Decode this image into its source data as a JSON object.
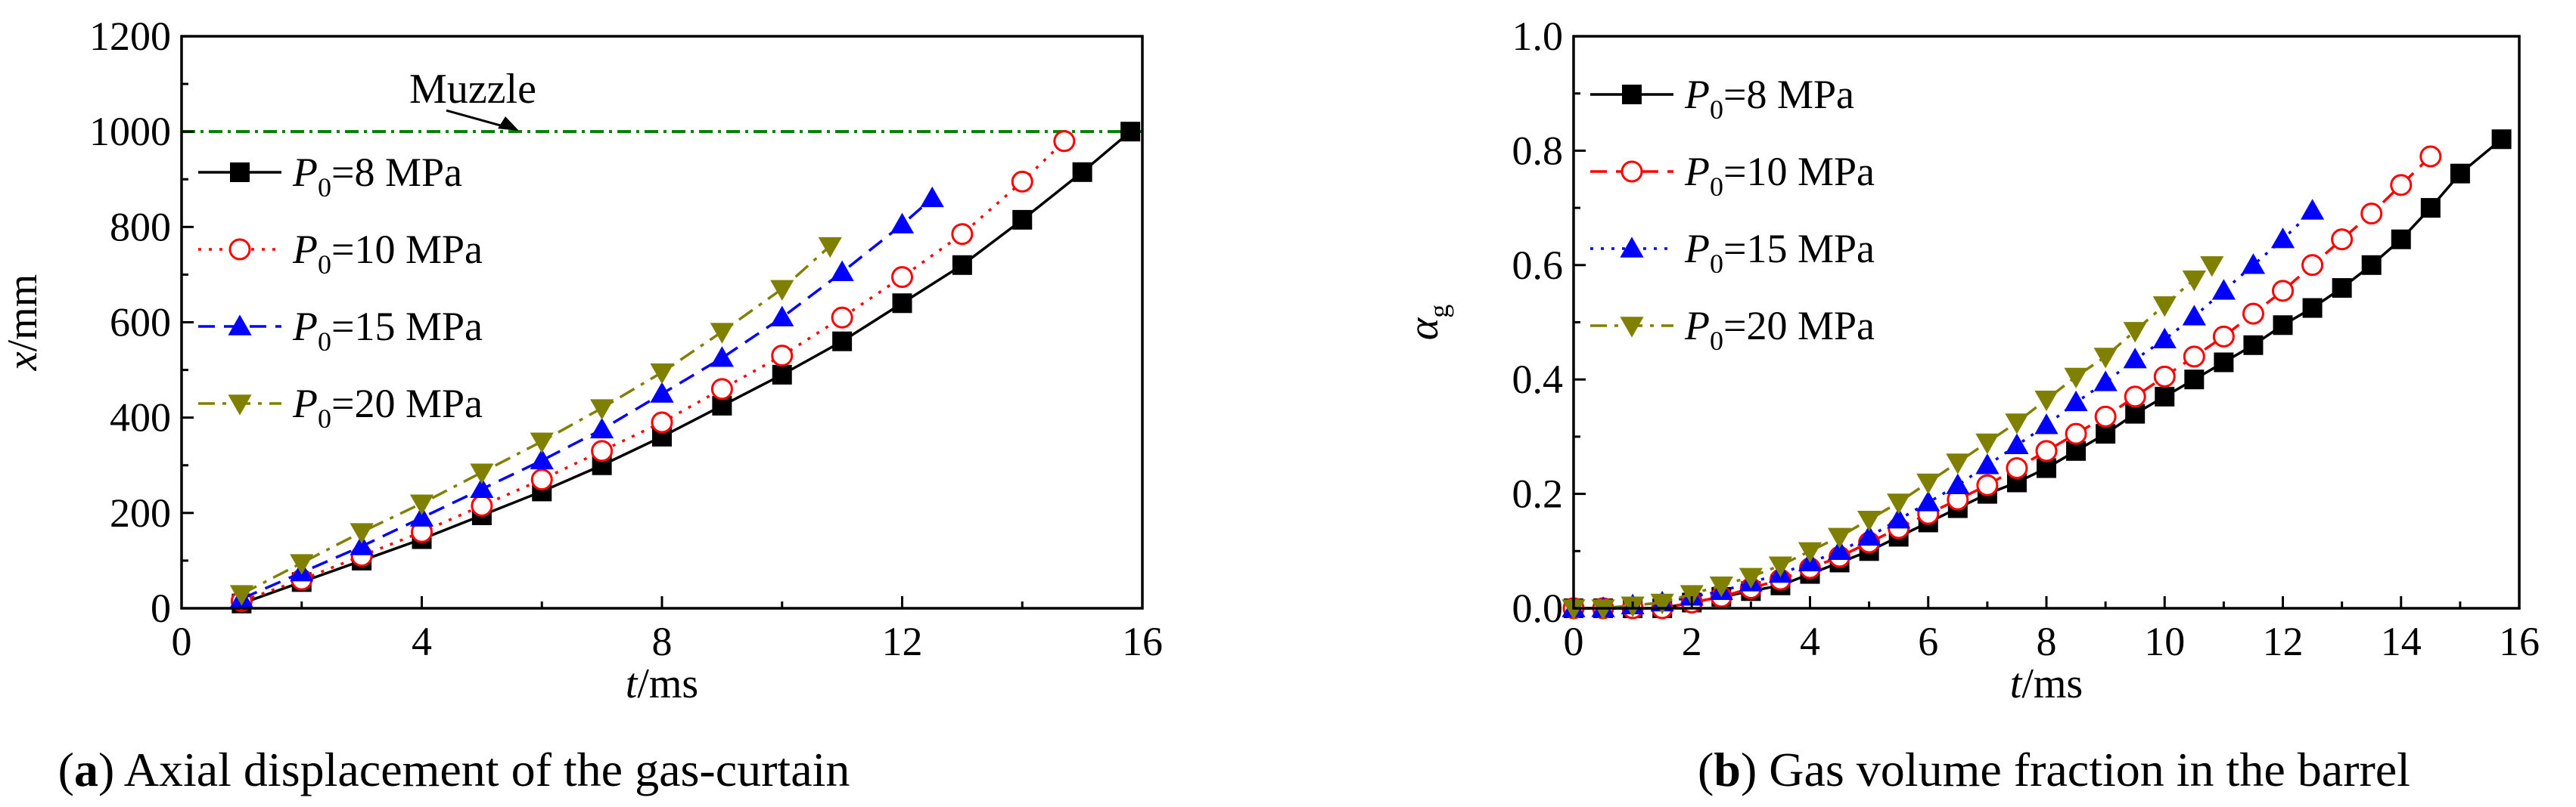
{
  "colors": {
    "black": "#000000",
    "red": "#ff0000",
    "blue": "#0000ff",
    "olive": "#808000",
    "muzzle": "#008000"
  },
  "chart_data": [
    {
      "type": "line",
      "panel": "a",
      "caption_letter": "a",
      "caption_text": "Axial displacement of the gas-curtain",
      "xlabel_italic": "t",
      "xlabel_rest": "/ms",
      "ylabel_italic": "x",
      "ylabel_rest": "/mm",
      "xlim": [
        0,
        16
      ],
      "ylim": [
        0,
        1200
      ],
      "xticks": [
        0,
        4,
        8,
        12,
        16
      ],
      "yticks": [
        0,
        200,
        400,
        600,
        800,
        1000,
        1200
      ],
      "legend_position": "left",
      "reference_line": {
        "y": 1000,
        "label": "Muzzle",
        "color": "#008000"
      },
      "series": [
        {
          "name_var": "P",
          "name_sub": "0",
          "name_rest": "=8 MPa",
          "color": "#000000",
          "marker": "square",
          "dash": "solid",
          "x": [
            1,
            2,
            3,
            4,
            5,
            6,
            7,
            8,
            9,
            10,
            11,
            12,
            13,
            14,
            15,
            15.8
          ],
          "y": [
            10,
            55,
            100,
            145,
            195,
            245,
            300,
            360,
            425,
            490,
            560,
            640,
            720,
            815,
            915,
            1000
          ]
        },
        {
          "name_var": "P",
          "name_sub": "0",
          "name_rest": "=10 MPa",
          "color": "#ff0000",
          "marker": "circle",
          "dash": "dot",
          "x": [
            1,
            2,
            3,
            4,
            5,
            6,
            7,
            8,
            9,
            10,
            11,
            12,
            13,
            14,
            14.7
          ],
          "y": [
            15,
            60,
            110,
            160,
            215,
            270,
            330,
            390,
            460,
            530,
            610,
            695,
            785,
            895,
            980
          ]
        },
        {
          "name_var": "P",
          "name_sub": "0",
          "name_rest": "=15 MPa",
          "color": "#0000ff",
          "marker": "triangle-up",
          "dash": "dash",
          "x": [
            1,
            2,
            3,
            4,
            5,
            6,
            7,
            8,
            9,
            10,
            11,
            12,
            12.5
          ],
          "y": [
            20,
            75,
            130,
            190,
            250,
            310,
            375,
            450,
            525,
            610,
            705,
            805,
            860
          ]
        },
        {
          "name_var": "P",
          "name_sub": "0",
          "name_rest": "=20 MPa",
          "color": "#808000",
          "marker": "triangle-down",
          "dash": "dashdot",
          "x": [
            1,
            2,
            3,
            4,
            5,
            6,
            7,
            8,
            9,
            10,
            10.8
          ],
          "y": [
            30,
            95,
            160,
            220,
            285,
            350,
            420,
            495,
            580,
            670,
            760
          ]
        }
      ]
    },
    {
      "type": "line",
      "panel": "b",
      "caption_letter": "b",
      "caption_text": "Gas volume fraction in the barrel",
      "xlabel_italic": "t",
      "xlabel_rest": "/ms",
      "ylabel_italic": "α",
      "ylabel_sub": "g",
      "xlim": [
        0,
        16
      ],
      "ylim": [
        0,
        1.0
      ],
      "xticks": [
        0,
        2,
        4,
        6,
        8,
        10,
        12,
        14,
        16
      ],
      "yticks": [
        0.0,
        0.2,
        0.4,
        0.6,
        0.8,
        1.0
      ],
      "yticklabels": [
        "0.0",
        "0.2",
        "0.4",
        "0.6",
        "0.8",
        "1.0"
      ],
      "legend_position": "top-left",
      "series": [
        {
          "name_var": "P",
          "name_sub": "0",
          "name_rest": "=8 MPa",
          "color": "#000000",
          "marker": "square",
          "dash": "solid",
          "x": [
            0,
            0.5,
            1,
            1.5,
            2,
            2.5,
            3,
            3.5,
            4,
            4.5,
            5,
            5.5,
            6,
            6.5,
            7,
            7.5,
            8,
            8.5,
            9,
            9.5,
            10,
            10.5,
            11,
            11.5,
            12,
            12.5,
            13,
            13.5,
            14,
            14.5,
            15,
            15.7
          ],
          "y": [
            0,
            0,
            0,
            0,
            0.01,
            0.02,
            0.03,
            0.04,
            0.06,
            0.08,
            0.1,
            0.125,
            0.15,
            0.175,
            0.2,
            0.22,
            0.245,
            0.275,
            0.305,
            0.34,
            0.37,
            0.4,
            0.43,
            0.46,
            0.495,
            0.525,
            0.56,
            0.6,
            0.645,
            0.7,
            0.76,
            0.82
          ]
        },
        {
          "name_var": "P",
          "name_sub": "0",
          "name_rest": "=10 MPa",
          "color": "#ff0000",
          "marker": "circle",
          "dash": "dash",
          "x": [
            0,
            0.5,
            1,
            1.5,
            2,
            2.5,
            3,
            3.5,
            4,
            4.5,
            5,
            5.5,
            6,
            6.5,
            7,
            7.5,
            8,
            8.5,
            9,
            9.5,
            10,
            10.5,
            11,
            11.5,
            12,
            12.5,
            13,
            13.5,
            14,
            14.5
          ],
          "y": [
            0,
            0,
            0,
            0,
            0.01,
            0.02,
            0.035,
            0.05,
            0.07,
            0.09,
            0.115,
            0.14,
            0.165,
            0.19,
            0.215,
            0.245,
            0.275,
            0.305,
            0.335,
            0.37,
            0.405,
            0.44,
            0.475,
            0.515,
            0.555,
            0.6,
            0.645,
            0.69,
            0.74,
            0.79
          ]
        },
        {
          "name_var": "P",
          "name_sub": "0",
          "name_rest": "=15 MPa",
          "color": "#0000ff",
          "marker": "triangle-up",
          "dash": "dot",
          "x": [
            0,
            0.5,
            1,
            1.5,
            2,
            2.5,
            3,
            3.5,
            4,
            4.5,
            5,
            5.5,
            6,
            6.5,
            7,
            7.5,
            8,
            8.5,
            9,
            9.5,
            10,
            10.5,
            11,
            11.5,
            12,
            12.5
          ],
          "y": [
            0,
            0,
            0.005,
            0.01,
            0.02,
            0.03,
            0.045,
            0.06,
            0.08,
            0.1,
            0.125,
            0.155,
            0.185,
            0.215,
            0.25,
            0.285,
            0.32,
            0.36,
            0.395,
            0.435,
            0.47,
            0.51,
            0.555,
            0.6,
            0.645,
            0.695
          ]
        },
        {
          "name_var": "P",
          "name_sub": "0",
          "name_rest": "=20 MPa",
          "color": "#808000",
          "marker": "triangle-down",
          "dash": "dashdot",
          "x": [
            0,
            0.5,
            1,
            1.5,
            2,
            2.5,
            3,
            3.5,
            4,
            4.5,
            5,
            5.5,
            6,
            6.5,
            7,
            7.5,
            8,
            8.5,
            9,
            9.5,
            10,
            10.5,
            10.8
          ],
          "y": [
            0,
            0,
            0.005,
            0.01,
            0.025,
            0.04,
            0.055,
            0.075,
            0.1,
            0.125,
            0.155,
            0.185,
            0.22,
            0.255,
            0.29,
            0.325,
            0.365,
            0.405,
            0.44,
            0.485,
            0.53,
            0.575,
            0.6
          ]
        }
      ]
    }
  ]
}
